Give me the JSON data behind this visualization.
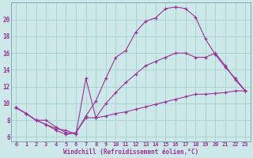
{
  "xlabel": "Windchill (Refroidissement éolien,°C)",
  "bg_color": "#cce8e8",
  "grid_color": "#aad4d4",
  "line_color": "#993399",
  "xlim": [
    -0.5,
    23.5
  ],
  "ylim": [
    5.5,
    22.0
  ],
  "yticks": [
    6,
    8,
    10,
    12,
    14,
    16,
    18,
    20
  ],
  "xticks": [
    0,
    1,
    2,
    3,
    4,
    5,
    6,
    7,
    8,
    9,
    10,
    11,
    12,
    13,
    14,
    15,
    16,
    17,
    18,
    19,
    20,
    21,
    22,
    23
  ],
  "series1_x": [
    0,
    1,
    2,
    3,
    4,
    5,
    6,
    7,
    8,
    9,
    10,
    11,
    12,
    13,
    14,
    15,
    16,
    17,
    18,
    19,
    20,
    21,
    22,
    23
  ],
  "series1_y": [
    9.5,
    8.8,
    8.0,
    7.5,
    6.8,
    6.3,
    6.5,
    8.5,
    10.3,
    13.0,
    15.5,
    16.3,
    18.5,
    19.8,
    20.2,
    21.3,
    21.5,
    21.3,
    20.3,
    17.7,
    15.8,
    14.3,
    13.0,
    11.5
  ],
  "series2_x": [
    0,
    1,
    2,
    3,
    4,
    5,
    6,
    7,
    8,
    9,
    10,
    11,
    12,
    13,
    14,
    15,
    16,
    17,
    18,
    19,
    20,
    21,
    22,
    23
  ],
  "series2_y": [
    9.5,
    8.8,
    8.0,
    8.0,
    7.2,
    6.5,
    6.5,
    8.3,
    8.3,
    8.5,
    8.8,
    9.0,
    9.3,
    9.6,
    9.9,
    10.2,
    10.5,
    10.8,
    11.1,
    11.1,
    11.2,
    11.3,
    11.5,
    11.5
  ],
  "series3_x": [
    0,
    1,
    2,
    3,
    4,
    5,
    6,
    7,
    8,
    9,
    10,
    11,
    12,
    13,
    14,
    15,
    16,
    17,
    18,
    19,
    20,
    21,
    22,
    23
  ],
  "series3_y": [
    9.5,
    8.8,
    8.0,
    7.5,
    7.0,
    6.8,
    6.3,
    13.0,
    8.3,
    10.0,
    11.3,
    12.5,
    13.5,
    14.5,
    15.0,
    15.5,
    16.0,
    16.0,
    15.5,
    15.5,
    16.0,
    14.5,
    12.8,
    11.5
  ]
}
